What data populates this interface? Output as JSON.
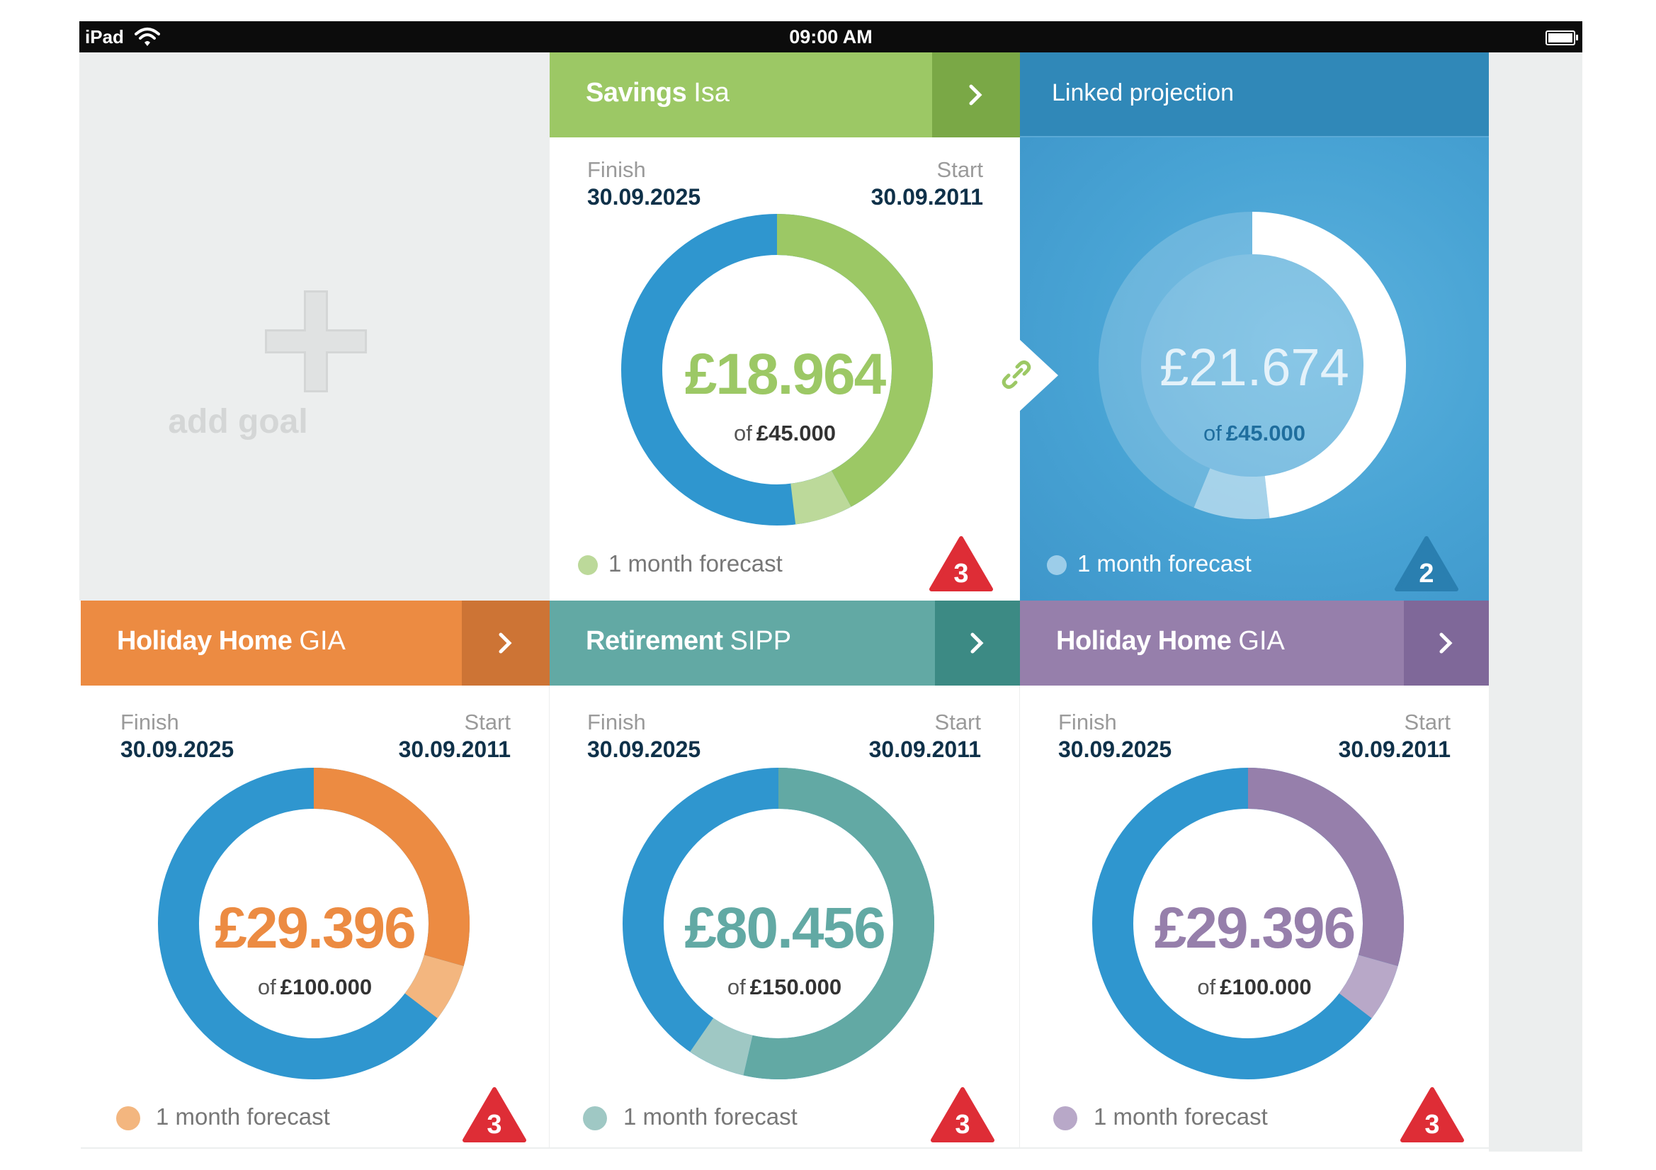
{
  "status_bar": {
    "device": "iPad",
    "time": "09:00 AM"
  },
  "add_goal": {
    "label": "add goal"
  },
  "link_icon": "link-icon",
  "cards": {
    "savings": {
      "title_bold": "Savings",
      "title_light": "Isa",
      "finish_label": "Finish",
      "finish_date": "30.09.2025",
      "start_label": "Start",
      "start_date": "30.09.2011",
      "amount": "£18.964",
      "of_word": "of",
      "target": "£45.000",
      "forecast": "1 month forecast",
      "alert_count": "3",
      "color": "#9cc865",
      "header_color": "#9cc865",
      "arrow_color": "#7aa846",
      "forecast_color": "#bcd99a",
      "progress": 0.421,
      "forecast_progress": 0.06
    },
    "linked": {
      "title": "Linked projection",
      "amount": "£21.674",
      "of_word": "of",
      "target": "£45.000",
      "forecast": "1 month forecast",
      "alert_count": "2",
      "progress": 0.482,
      "forecast_progress": 0.08
    },
    "holiday1": {
      "title_bold": "Holiday Home",
      "title_light": "GIA",
      "finish_label": "Finish",
      "finish_date": "30.09.2025",
      "start_label": "Start",
      "start_date": "30.09.2011",
      "amount": "£29.396",
      "of_word": "of",
      "target": "£100.000",
      "forecast": "1 month forecast",
      "alert_count": "3",
      "color": "#ec8b42",
      "header_color": "#ec8b42",
      "arrow_color": "#cd7435",
      "forecast_color": "#f3b67f",
      "progress": 0.294,
      "forecast_progress": 0.06
    },
    "retirement": {
      "title_bold": "Retirement",
      "title_light": "SIPP",
      "finish_label": "Finish",
      "finish_date": "30.09.2025",
      "start_label": "Start",
      "start_date": "30.09.2011",
      "amount": "£80.456",
      "of_word": "of",
      "target": "£150.000",
      "forecast": "1 month forecast",
      "alert_count": "3",
      "color": "#62a9a4",
      "header_color": "#62a9a4",
      "arrow_color": "#3c8a84",
      "forecast_color": "#9fc8c4",
      "progress": 0.536,
      "forecast_progress": 0.06
    },
    "holiday2": {
      "title_bold": "Holiday Home",
      "title_light": "GIA",
      "finish_label": "Finish",
      "finish_date": "30.09.2025",
      "start_label": "Start",
      "start_date": "30.09.2011",
      "amount": "£29.396",
      "of_word": "of",
      "target": "£100.000",
      "forecast": "1 month forecast",
      "alert_count": "3",
      "color": "#967fab",
      "header_color": "#967fab",
      "arrow_color": "#7f6899",
      "forecast_color": "#b8a8c8",
      "progress": 0.294,
      "forecast_progress": 0.06
    }
  },
  "colors": {
    "donut_base": "#2f96cf",
    "date_text": "#0f3149",
    "alert_red": "#de2d36",
    "linked_badge": "#2a7fb0"
  }
}
